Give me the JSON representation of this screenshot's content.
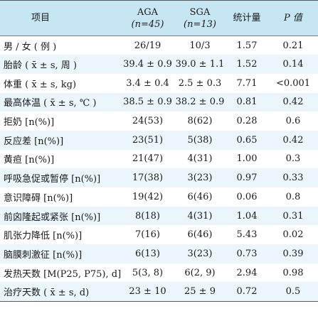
{
  "header": {
    "item": "项目",
    "aga": "AGA",
    "aga_n": "(n=45)",
    "sga": "SGA",
    "sga_n": "(n=13)",
    "stat": "统计量",
    "p": "P 值"
  },
  "rows": [
    {
      "label": "男 / 女 ( 例 )",
      "aga": "26/19",
      "sga": "10/3",
      "stat": "1.57",
      "p": "0.21"
    },
    {
      "label": "胎龄 ( x̄ ± s, 周 )",
      "aga": "39.4 ± 0.9",
      "sga": "39.0 ± 1.1",
      "stat": "1.52",
      "p": "0.14"
    },
    {
      "label": "体重 ( x̄ ± s, kg)",
      "aga": "3.4 ± 0.4",
      "sga": "2.5 ± 0.3",
      "stat": "7.71",
      "p": "<0.001"
    },
    {
      "label": "最高体温 ( x̄ ± s, ℃ )",
      "aga": "38.5 ± 0.9",
      "sga": "38.2 ± 0.9",
      "stat": "0.81",
      "p": "0.42"
    },
    {
      "label": "拒奶 [n(%)]",
      "aga": "24(53)",
      "sga": "8(62)",
      "stat": "0.28",
      "p": "0.6"
    },
    {
      "label": "反应差 [n(%)]",
      "aga": "23(51)",
      "sga": "5(38)",
      "stat": "0.65",
      "p": "0.42"
    },
    {
      "label": "黄疸 [n(%)]",
      "aga": "21(47)",
      "sga": "4(31)",
      "stat": "1.00",
      "p": "0.3"
    },
    {
      "label": "呼吸急促或暂停 [n(%)]",
      "aga": "17(38)",
      "sga": "3(23)",
      "stat": "0.97",
      "p": "0.33"
    },
    {
      "label": "意识障碍 [n(%)]",
      "aga": "19(42)",
      "sga": "6(46)",
      "stat": "0.06",
      "p": "0.8"
    },
    {
      "label": "前囟隆起或紧张 [n(%)]",
      "aga": "8(18)",
      "sga": "4(31)",
      "stat": "1.04",
      "p": "0.31"
    },
    {
      "label": "肌张力降低 [n(%)]",
      "aga": "7(16)",
      "sga": "6(46)",
      "stat": "5.43",
      "p": "0.02"
    },
    {
      "label": "脑膜刺激征 [n(%)]",
      "aga": "6(13)",
      "sga": "3(23)",
      "stat": "0.73",
      "p": "0.39"
    },
    {
      "label": "发热天数 [M(P25, P75), d]",
      "aga": "5(3, 8)",
      "sga": "6(2, 9)",
      "stat": "2.94",
      "p": "0.98"
    },
    {
      "label": "治疗天数 ( x̄ ± s, d)",
      "aga": "23 ± 10",
      "sga": "25 ± 9",
      "stat": "0.72",
      "p": "0.5"
    }
  ]
}
